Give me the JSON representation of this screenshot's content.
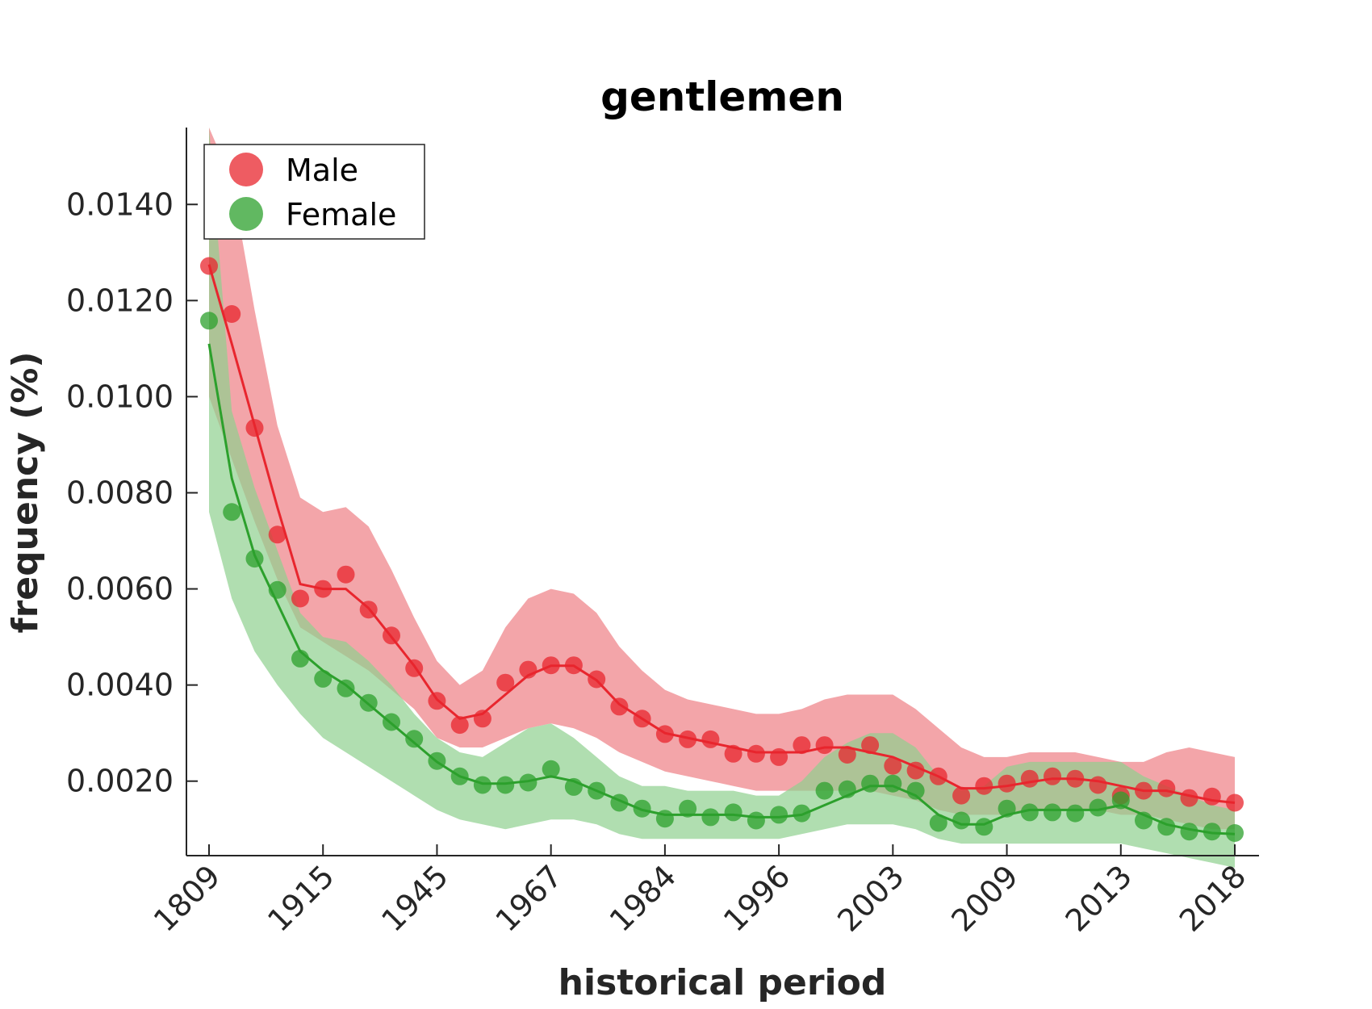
{
  "chart_data": {
    "type": "scatter",
    "title": "gentlemen",
    "xlabel": "historical period",
    "ylabel": "frequency (%)",
    "x_tick_labels": [
      "1809",
      "1915",
      "1945",
      "1967",
      "1984",
      "1996",
      "2003",
      "2009",
      "2013",
      "2018"
    ],
    "y_ticks": [
      0.002,
      0.004,
      0.006,
      0.008,
      0.01,
      0.012,
      0.014
    ],
    "y_tick_labels": [
      "0.0020",
      "0.0040",
      "0.0060",
      "0.0080",
      "0.0100",
      "0.0120",
      "0.0140"
    ],
    "ylim": [
      0.00045,
      0.0156
    ],
    "legend_position": "top-left",
    "grid": false,
    "series": [
      {
        "name": "Male",
        "color": "#e8262e",
        "band_color": "#ee7f85",
        "points": [
          0.01272,
          0.01172,
          0.00935,
          0.00713,
          0.0058,
          0.006,
          0.0063,
          0.00557,
          0.00503,
          0.00435,
          0.00367,
          0.00317,
          0.0033,
          0.00405,
          0.00432,
          0.00441,
          0.00441,
          0.00412,
          0.00355,
          0.0033,
          0.00298,
          0.00287,
          0.00287,
          0.00257,
          0.00257,
          0.0025,
          0.00275,
          0.00275,
          0.00255,
          0.00275,
          0.00232,
          0.00222,
          0.0021,
          0.0017,
          0.0019,
          0.00195,
          0.00205,
          0.0021,
          0.00205,
          0.00192,
          0.0017,
          0.0018,
          0.00185,
          0.00165,
          0.00168,
          0.00155
        ],
        "trend": [
          0.01275,
          0.0111,
          0.0094,
          0.0077,
          0.0061,
          0.006,
          0.006,
          0.0056,
          0.005,
          0.0044,
          0.0037,
          0.0033,
          0.0034,
          0.0038,
          0.0042,
          0.0044,
          0.0044,
          0.0041,
          0.0036,
          0.0033,
          0.003,
          0.0029,
          0.0028,
          0.0027,
          0.0026,
          0.0026,
          0.0026,
          0.0027,
          0.0027,
          0.0026,
          0.0025,
          0.0023,
          0.0021,
          0.00185,
          0.00185,
          0.0019,
          0.00198,
          0.00205,
          0.00205,
          0.002,
          0.0019,
          0.0018,
          0.0018,
          0.0017,
          0.0016,
          0.00155
        ],
        "band_upper": [
          0.0156,
          0.0145,
          0.0118,
          0.0094,
          0.0079,
          0.0076,
          0.0077,
          0.0073,
          0.0064,
          0.0054,
          0.0045,
          0.004,
          0.0043,
          0.0052,
          0.0058,
          0.006,
          0.0059,
          0.0055,
          0.0048,
          0.0043,
          0.0039,
          0.0037,
          0.0036,
          0.0035,
          0.0034,
          0.0034,
          0.0035,
          0.0037,
          0.0038,
          0.0038,
          0.0038,
          0.0035,
          0.0031,
          0.0027,
          0.0025,
          0.0025,
          0.0026,
          0.0026,
          0.0026,
          0.0025,
          0.0024,
          0.0024,
          0.0026,
          0.0027,
          0.0026,
          0.0025
        ],
        "band_lower": [
          0.01,
          0.0087,
          0.0074,
          0.0062,
          0.0052,
          0.0049,
          0.0046,
          0.0043,
          0.0039,
          0.0035,
          0.0029,
          0.0027,
          0.0027,
          0.0029,
          0.0031,
          0.0032,
          0.0031,
          0.0029,
          0.0026,
          0.0024,
          0.0022,
          0.0021,
          0.002,
          0.0019,
          0.0018,
          0.0018,
          0.0018,
          0.0018,
          0.0018,
          0.0018,
          0.0017,
          0.0016,
          0.0014,
          0.0013,
          0.0013,
          0.0013,
          0.0014,
          0.0014,
          0.0014,
          0.0014,
          0.0013,
          0.0013,
          0.0012,
          0.0011,
          0.001,
          0.001
        ]
      },
      {
        "name": "Female",
        "color": "#2ca02c",
        "band_color": "#8fd08f",
        "points": [
          0.01158,
          0.0076,
          0.00663,
          0.00598,
          0.00455,
          0.00413,
          0.00393,
          0.00363,
          0.00323,
          0.00288,
          0.00242,
          0.0021,
          0.00192,
          0.00192,
          0.00197,
          0.00225,
          0.00188,
          0.0018,
          0.00155,
          0.00143,
          0.00122,
          0.00143,
          0.00125,
          0.00135,
          0.00118,
          0.0013,
          0.00133,
          0.0018,
          0.00183,
          0.00195,
          0.00195,
          0.0018,
          0.00113,
          0.00118,
          0.00105,
          0.00143,
          0.00135,
          0.00135,
          0.00133,
          0.00145,
          0.0016,
          0.00118,
          0.00105,
          0.00095,
          0.00095,
          0.00092
        ],
        "trend": [
          0.0111,
          0.0083,
          0.0067,
          0.0057,
          0.0047,
          0.0043,
          0.004,
          0.0036,
          0.0032,
          0.0028,
          0.0024,
          0.0021,
          0.00195,
          0.00195,
          0.002,
          0.0021,
          0.002,
          0.0018,
          0.0016,
          0.0014,
          0.0013,
          0.0013,
          0.0013,
          0.0013,
          0.00125,
          0.00125,
          0.0013,
          0.0015,
          0.0017,
          0.0019,
          0.0019,
          0.0017,
          0.0013,
          0.0011,
          0.0011,
          0.0013,
          0.0014,
          0.0014,
          0.0014,
          0.0014,
          0.0015,
          0.0013,
          0.0011,
          0.001,
          0.00092,
          0.0009
        ],
        "band_upper": [
          0.0156,
          0.0097,
          0.0081,
          0.0068,
          0.0055,
          0.005,
          0.0049,
          0.0045,
          0.004,
          0.0034,
          0.0029,
          0.0026,
          0.0025,
          0.0028,
          0.0031,
          0.0032,
          0.0029,
          0.0025,
          0.0021,
          0.0019,
          0.0019,
          0.0018,
          0.0018,
          0.0018,
          0.0017,
          0.0017,
          0.002,
          0.0025,
          0.0028,
          0.003,
          0.003,
          0.0027,
          0.0021,
          0.0018,
          0.0019,
          0.0023,
          0.0024,
          0.0024,
          0.0024,
          0.0024,
          0.0024,
          0.0021,
          0.0019,
          0.0017,
          0.0015,
          0.0014
        ],
        "band_lower": [
          0.0076,
          0.0058,
          0.0047,
          0.004,
          0.0034,
          0.0029,
          0.0026,
          0.0023,
          0.002,
          0.0017,
          0.0014,
          0.0012,
          0.0011,
          0.001,
          0.0011,
          0.0012,
          0.0012,
          0.0011,
          0.0009,
          0.0008,
          0.0008,
          0.0008,
          0.0008,
          0.0008,
          0.0008,
          0.0008,
          0.0009,
          0.001,
          0.0011,
          0.0011,
          0.0011,
          0.001,
          0.0008,
          0.0007,
          0.0007,
          0.0007,
          0.0007,
          0.0007,
          0.0007,
          0.0007,
          0.0007,
          0.0006,
          0.0005,
          0.0004,
          0.0003,
          0.0002
        ]
      }
    ]
  }
}
